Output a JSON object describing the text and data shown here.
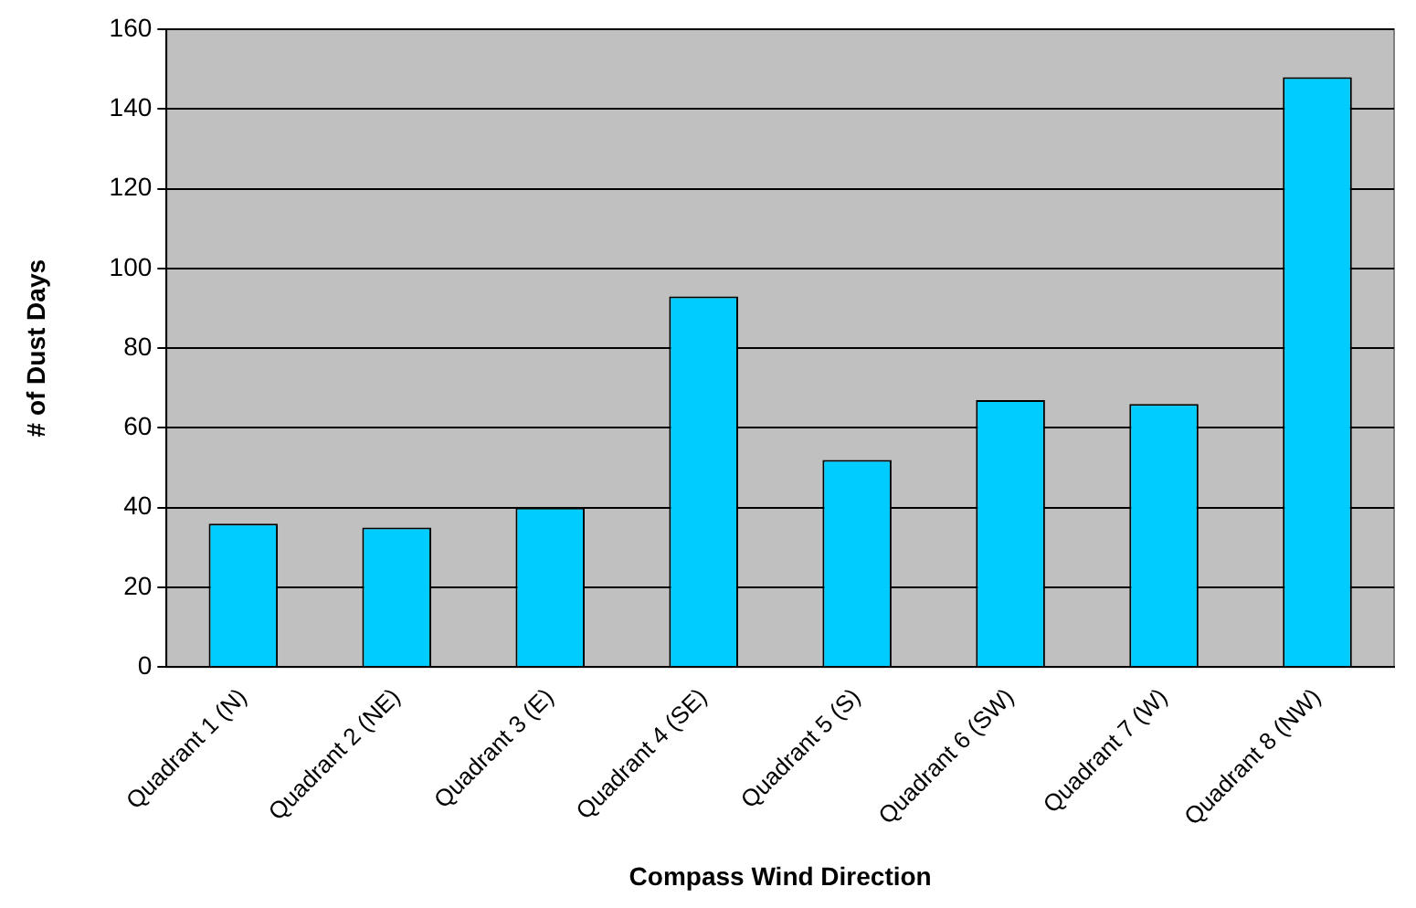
{
  "chart_data": {
    "type": "bar",
    "xlabel": "Compass Wind Direction",
    "ylabel": "# of Dust Days",
    "categories": [
      "Quadrant 1 (N)",
      "Quadrant 2 (NE)",
      "Quadrant 3 (E)",
      "Quadrant 4 (SE)",
      "Quadrant 5 (S)",
      "Quadrant 6 (SW)",
      "Quadrant 7 (W)",
      "Quadrant 8 (NW)"
    ],
    "values": [
      36,
      35,
      40,
      93,
      52,
      67,
      66,
      148
    ],
    "color": "#00ccff",
    "ylim": [
      0,
      160
    ],
    "yticks": [
      0,
      20,
      40,
      60,
      80,
      100,
      120,
      140,
      160
    ],
    "grid": "y",
    "legend": false
  }
}
